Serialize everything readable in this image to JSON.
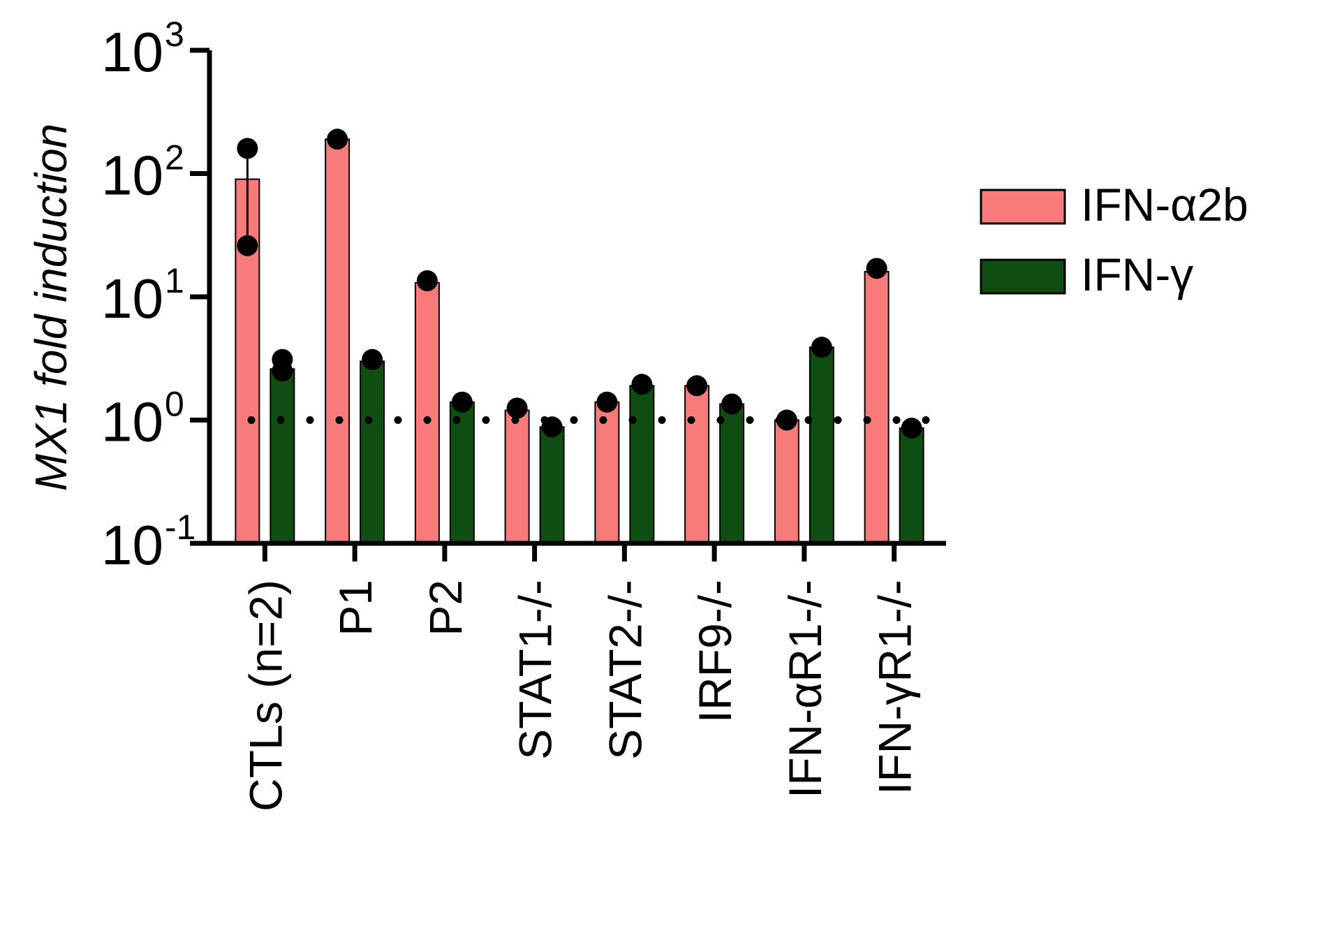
{
  "chart_data": {
    "type": "bar",
    "title": "",
    "ylabel": "MX1 fold induction",
    "xlabel": "",
    "yscale": "log",
    "ylim": [
      0.1,
      1000
    ],
    "yticks": [
      {
        "value": 0.1,
        "base": "10",
        "exp": "-1"
      },
      {
        "value": 1,
        "base": "10",
        "exp": "0"
      },
      {
        "value": 10,
        "base": "10",
        "exp": "1"
      },
      {
        "value": 100,
        "base": "10",
        "exp": "2"
      },
      {
        "value": 1000,
        "base": "10",
        "exp": "3"
      }
    ],
    "categories": [
      "CTLs (n=2)",
      "P1",
      "P2",
      "STAT1-/-",
      "STAT2-/-",
      "IRF9-/-",
      "IFN-αR1-/-",
      "IFN-γR1-/-"
    ],
    "series": [
      {
        "name": "IFN-α2b",
        "color": "#f87b7b",
        "values": [
          90,
          190,
          13,
          1.2,
          1.4,
          1.9,
          1.0,
          16
        ],
        "points": [
          [
            160,
            26
          ],
          [
            190
          ],
          [
            13.5
          ],
          [
            1.25
          ],
          [
            1.4
          ],
          [
            1.9
          ],
          [
            1.0
          ],
          [
            17
          ]
        ],
        "error": [
          [
            26,
            160
          ],
          null,
          null,
          null,
          null,
          null,
          null,
          null
        ]
      },
      {
        "name": "IFN-γ",
        "color": "#0f4d12",
        "values": [
          2.6,
          3.0,
          1.4,
          0.88,
          1.9,
          1.35,
          3.9,
          0.86
        ],
        "points": [
          [
            3.1,
            2.5
          ],
          [
            3.1
          ],
          [
            1.4
          ],
          [
            0.88
          ],
          [
            1.95
          ],
          [
            1.35
          ],
          [
            3.9
          ],
          [
            0.86
          ]
        ],
        "error": [
          null,
          null,
          null,
          null,
          null,
          null,
          null,
          null
        ]
      }
    ],
    "reference_line": {
      "value": 1,
      "style": "dotted"
    },
    "legend": {
      "position": "right"
    },
    "grid": false
  }
}
